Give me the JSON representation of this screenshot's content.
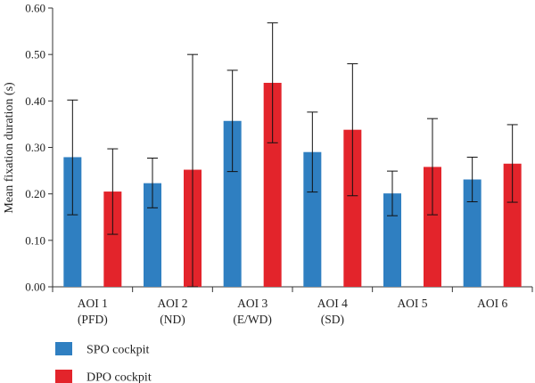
{
  "chart_data": {
    "type": "bar",
    "ylabel": "Mean fixation duration (s)",
    "xlabel": "",
    "ylim": [
      0,
      0.6
    ],
    "yticks": [
      "0.00",
      "0.10",
      "0.20",
      "0.30",
      "0.40",
      "0.50",
      "0.60"
    ],
    "grid": false,
    "legend_position": "bottom-left",
    "categories": [
      {
        "line1": "AOI 1",
        "line2": "(PFD)"
      },
      {
        "line1": "AOI 2",
        "line2": "(ND)"
      },
      {
        "line1": "AOI 3",
        "line2": "(E/WD)"
      },
      {
        "line1": "AOI 4",
        "line2": "(SD)"
      },
      {
        "line1": "AOI 5",
        "line2": ""
      },
      {
        "line1": "AOI 6",
        "line2": ""
      }
    ],
    "series": [
      {
        "name": "SPO cockpit",
        "color": "#2f7fc1",
        "values": [
          0.279,
          0.223,
          0.357,
          0.29,
          0.201,
          0.231
        ],
        "err_low": [
          0.155,
          0.17,
          0.248,
          0.204,
          0.153,
          0.183
        ],
        "err_high": [
          0.402,
          0.277,
          0.466,
          0.376,
          0.249,
          0.279
        ]
      },
      {
        "name": "DPO cockpit",
        "color": "#e3242b",
        "values": [
          0.205,
          0.252,
          0.439,
          0.338,
          0.258,
          0.265
        ],
        "err_low": [
          0.113,
          0.0,
          0.31,
          0.196,
          0.155,
          0.182
        ],
        "err_high": [
          0.297,
          0.5,
          0.568,
          0.48,
          0.362,
          0.349
        ]
      }
    ]
  }
}
